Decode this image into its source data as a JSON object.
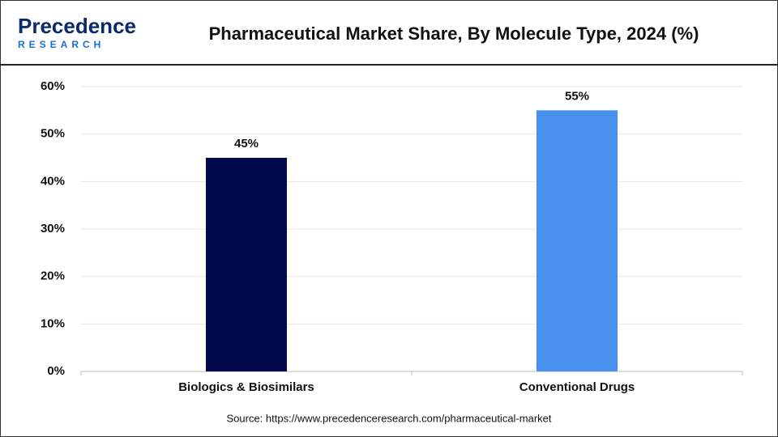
{
  "brand": {
    "name": "Precedence",
    "tagline": "RESEARCH"
  },
  "chart_data": {
    "type": "bar",
    "title": "Pharmaceutical Market Share, By Molecule Type, 2024 (%)",
    "categories": [
      "Biologics & Biosimilars",
      "Conventional Drugs"
    ],
    "values": [
      45,
      55
    ],
    "value_labels": [
      "45%",
      "55%"
    ],
    "colors": [
      "#02094f",
      "#4791ec"
    ],
    "ylim": [
      0,
      60
    ],
    "yticks": [
      {
        "value": 0,
        "label": "0%"
      },
      {
        "value": 10,
        "label": "10%"
      },
      {
        "value": 20,
        "label": "20%"
      },
      {
        "value": 30,
        "label": "30%"
      },
      {
        "value": 40,
        "label": "40%"
      },
      {
        "value": 50,
        "label": "50%"
      },
      {
        "value": 60,
        "label": "60%"
      }
    ],
    "grid": true,
    "source": "Source: https://www.precedenceresearch.com/pharmaceutical-market"
  }
}
